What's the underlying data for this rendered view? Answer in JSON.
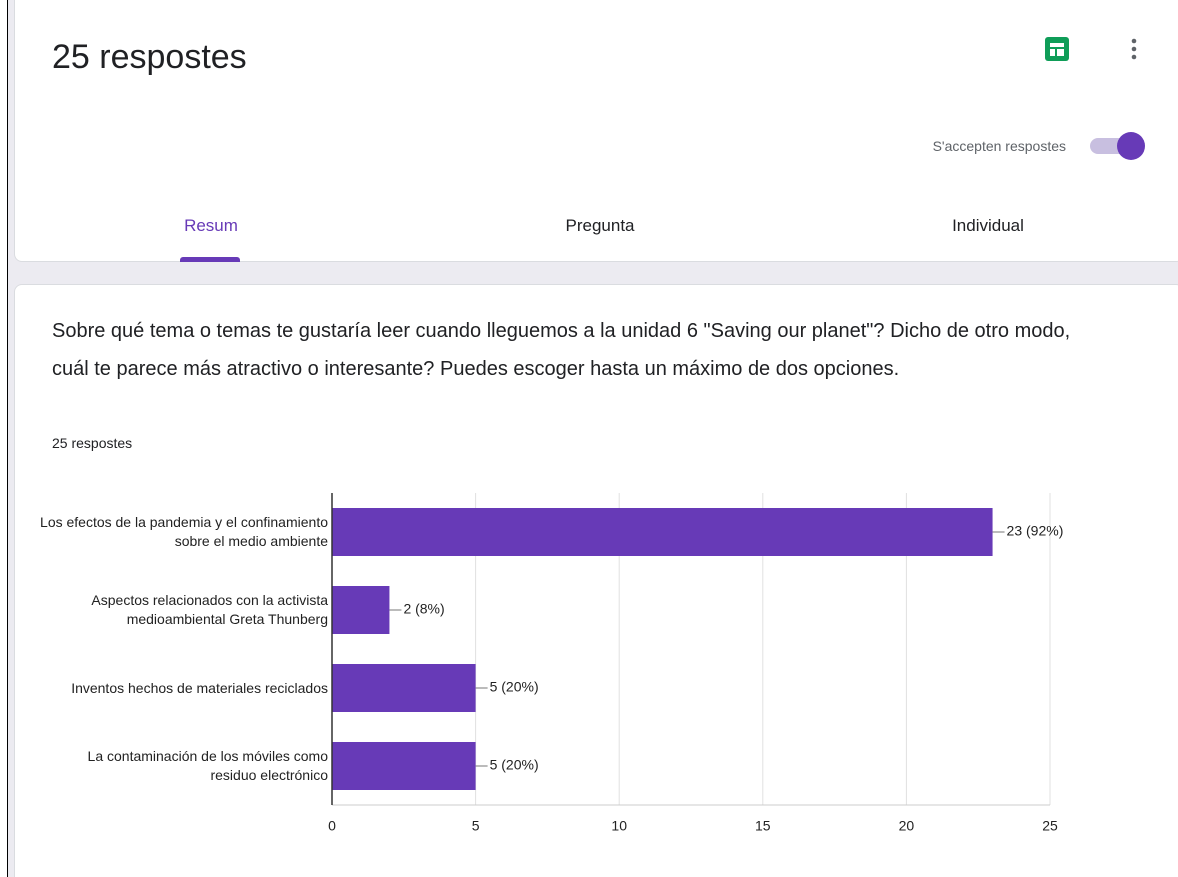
{
  "header": {
    "title": "25 respostes",
    "accepting_label": "S'accepten respostes"
  },
  "tabs": [
    "Resum",
    "Pregunta",
    "Individual"
  ],
  "question": {
    "text": "Sobre qué tema o temas te gustaría leer cuando lleguemos a la unidad 6 \"Saving our planet\"? Dicho de otro modo, cuál te parece más atractivo o interesante? Puedes escoger hasta un máximo de dos opciones.",
    "count": "25 respostes"
  },
  "chart_data": {
    "type": "barh",
    "categories": [
      "Los efectos de la pandemia y el confinamiento sobre el medio ambiente",
      "Aspectos relacionados con la activista medioambiental Greta Thunberg",
      "Inventos hechos de materiales reciclados",
      "La contaminación de los móviles como residuo electrónico"
    ],
    "values": [
      23,
      2,
      5,
      5
    ],
    "value_labels": [
      "23 (92%)",
      "2 (8%)",
      "5 (20%)",
      "5 (20%)"
    ],
    "color": "#673ab7",
    "xlim": [
      0,
      25
    ],
    "xticks": [
      0,
      5,
      10,
      15,
      20,
      25
    ],
    "grid": true
  }
}
